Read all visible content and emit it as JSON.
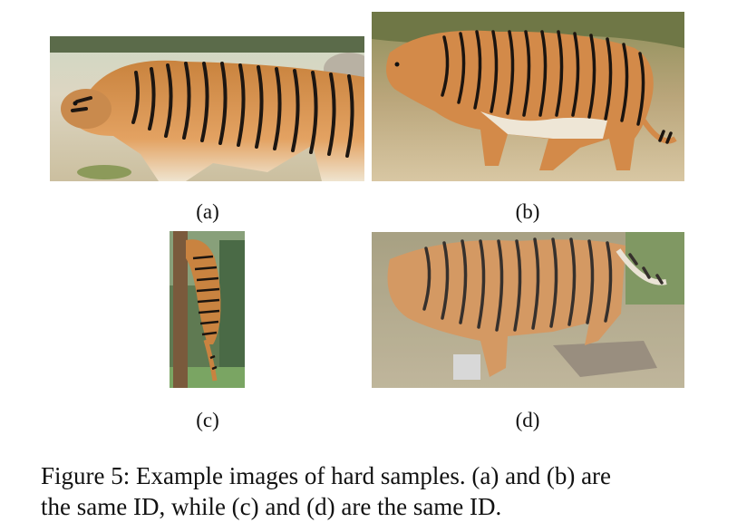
{
  "figure": {
    "panels": [
      {
        "id": "a",
        "label": "(a)",
        "image": "tiger-walking-left"
      },
      {
        "id": "b",
        "label": "(b)",
        "image": "tiger-walking-left-on-dry-grass"
      },
      {
        "id": "c",
        "label": "(c)",
        "image": "tiger-climbing-tree"
      },
      {
        "id": "d",
        "label": "(d)",
        "image": "tiger-behind-glass"
      }
    ],
    "caption_line1": "Figure 5: Example images of hard samples. (a) and (b) are",
    "caption_line2": "the same ID, while (c) and (d) are the same ID."
  }
}
